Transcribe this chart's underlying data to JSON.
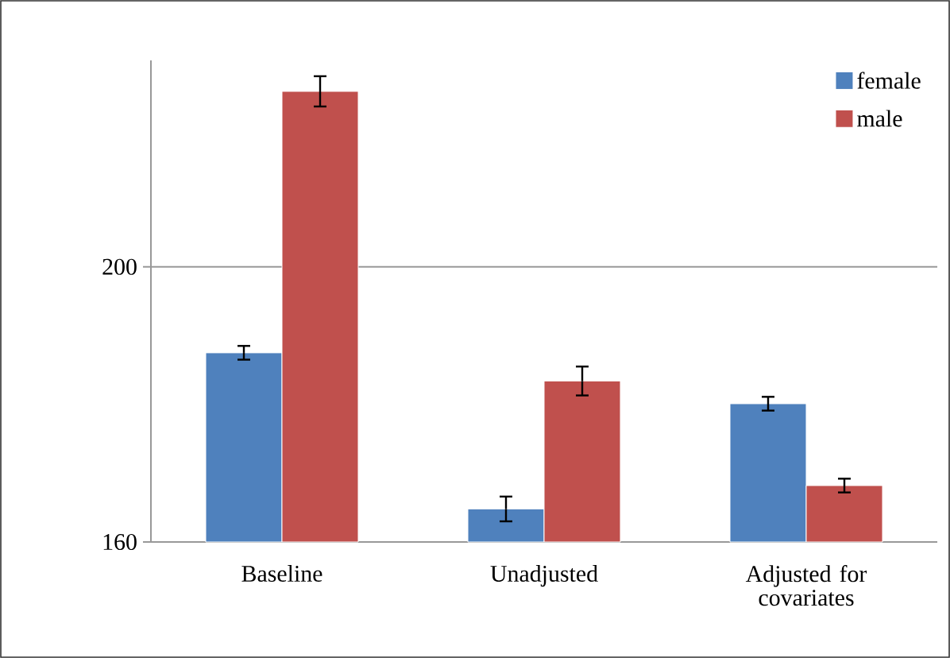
{
  "chart_data": {
    "type": "bar",
    "categories": [
      "Baseline",
      "Unadjusted",
      "Adjusted for covariates"
    ],
    "series": [
      {
        "name": "female",
        "color": "#4f81bd",
        "values": [
          187.5,
          164.8,
          180.1
        ],
        "errors": [
          1.0,
          1.8,
          1.0
        ]
      },
      {
        "name": "male",
        "color": "#c0504d",
        "values": [
          225.5,
          183.4,
          168.2
        ],
        "errors": [
          2.2,
          2.1,
          1.0
        ]
      }
    ],
    "ylim": [
      160,
      230
    ],
    "yticks": [
      160,
      200
    ],
    "grid": "y",
    "legend": "top right"
  }
}
